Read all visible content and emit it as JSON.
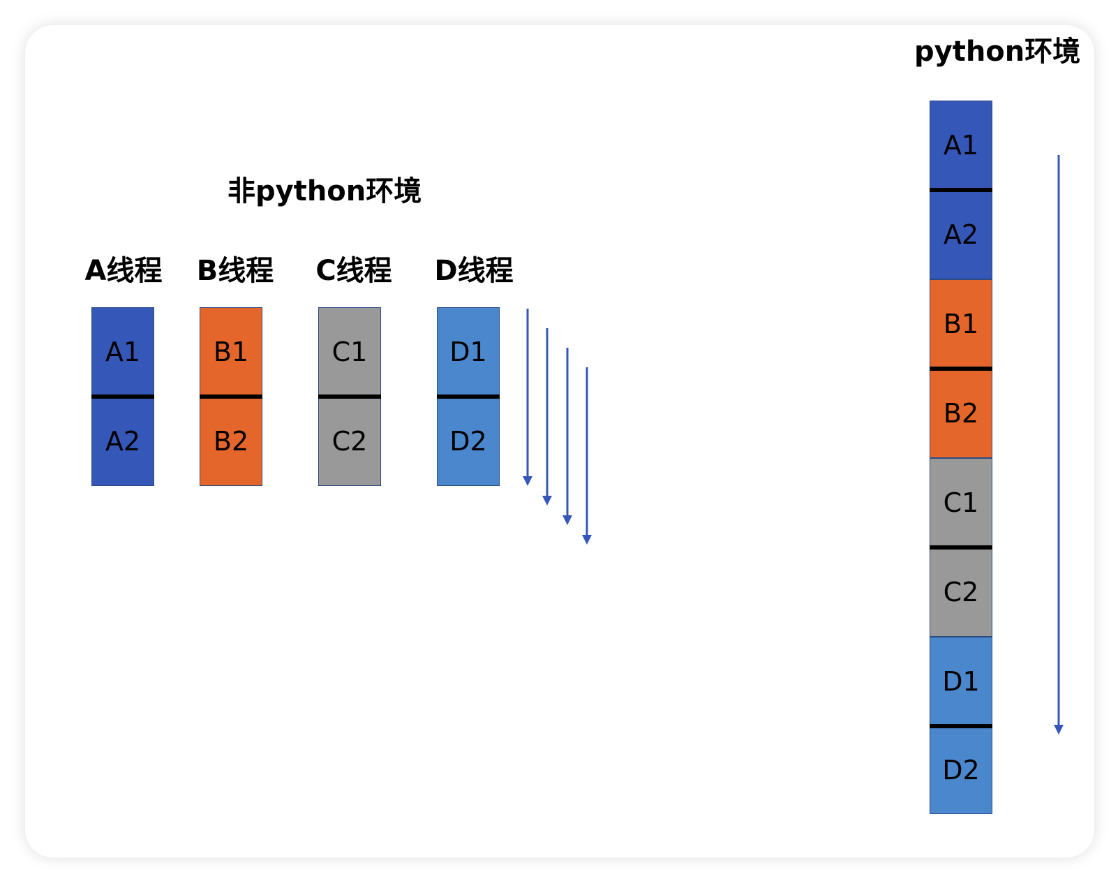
{
  "left": {
    "title": "非python环境",
    "threads": [
      {
        "label": "A线程",
        "blocks": [
          "A1",
          "A2"
        ],
        "color": "#3557b7"
      },
      {
        "label": "B线程",
        "blocks": [
          "B1",
          "B2"
        ],
        "color": "#e4662a"
      },
      {
        "label": "C线程",
        "blocks": [
          "C1",
          "C2"
        ],
        "color": "#999999"
      },
      {
        "label": "D线程",
        "blocks": [
          "D1",
          "D2"
        ],
        "color": "#4a87cc"
      }
    ]
  },
  "right": {
    "title": "python环境",
    "blocks": [
      {
        "text": "A1",
        "color": "#3557b7"
      },
      {
        "text": "A2",
        "color": "#3557b7"
      },
      {
        "text": "B1",
        "color": "#e4662a"
      },
      {
        "text": "B2",
        "color": "#e4662a"
      },
      {
        "text": "C1",
        "color": "#999999"
      },
      {
        "text": "C2",
        "color": "#999999"
      },
      {
        "text": "D1",
        "color": "#4a87cc"
      },
      {
        "text": "D2",
        "color": "#4a87cc"
      }
    ]
  },
  "arrow_color": "#3557b7"
}
